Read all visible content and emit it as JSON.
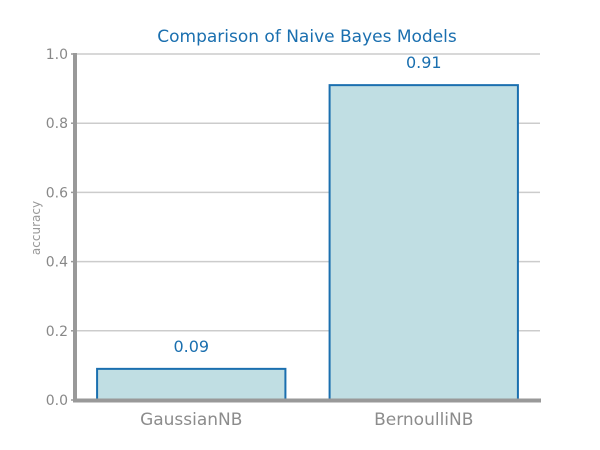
{
  "chart_data": {
    "type": "bar",
    "title": "Comparison of Naive Bayes Models",
    "xlabel": "",
    "ylabel": "accuracy",
    "categories": [
      "GaussianNB",
      "BernoulliNB"
    ],
    "values": [
      0.09,
      0.91
    ],
    "value_labels": [
      "0.09",
      "0.91"
    ],
    "ylim": [
      0.0,
      1.0
    ],
    "yticks": [
      "0.0",
      "0.2",
      "0.4",
      "0.6",
      "0.8",
      "1.0"
    ],
    "grid": true,
    "colors": {
      "bar_fill": "#c0dee3",
      "bar_edge": "#1a6faf",
      "title": "#1a6faf",
      "label": "#1a6faf"
    }
  }
}
